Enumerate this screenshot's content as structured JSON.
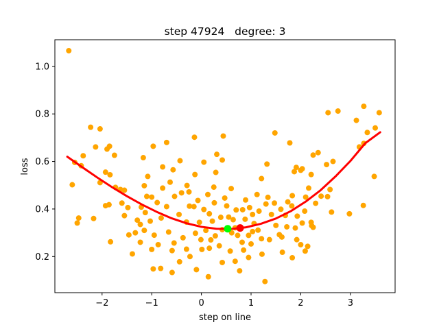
{
  "chart_data": {
    "type": "scatter",
    "title": "step 47924   degree: 3",
    "xlabel": "step on line",
    "ylabel": "loss",
    "xlim": [
      -2.95,
      3.9
    ],
    "ylim": [
      0.048,
      1.112
    ],
    "xticks": [
      -2,
      -1,
      0,
      1,
      2,
      3
    ],
    "yticks": [
      0.2,
      0.4,
      0.6,
      0.8,
      1.0
    ],
    "xtick_labels": [
      "−2",
      "−1",
      "0",
      "1",
      "2",
      "3"
    ],
    "ytick_labels": [
      "0.2",
      "0.4",
      "0.6",
      "0.8",
      "1.0"
    ],
    "grid": false,
    "colors": {
      "points": "#ffa500",
      "fit_line": "#ff0000",
      "current_point": "#00ff00",
      "min_point": "#ff0000"
    },
    "series": [
      {
        "kind": "scatter",
        "points": [
          [
            -2.67,
            1.066
          ],
          [
            -2.55,
            0.596
          ],
          [
            -2.6,
            0.502
          ],
          [
            -2.5,
            0.341
          ],
          [
            -2.47,
            0.362
          ],
          [
            -2.42,
            0.582
          ],
          [
            -2.38,
            0.624
          ],
          [
            -2.23,
            0.744
          ],
          [
            -2.17,
            0.36
          ],
          [
            -2.13,
            0.661
          ],
          [
            -2.04,
            0.737
          ],
          [
            -2.04,
            0.511
          ],
          [
            -1.9,
            0.652
          ],
          [
            -1.85,
            0.664
          ],
          [
            -1.93,
            0.555
          ],
          [
            -1.84,
            0.544
          ],
          [
            -1.86,
            0.418
          ],
          [
            -1.93,
            0.414
          ],
          [
            -1.83,
            0.262
          ],
          [
            -1.75,
            0.626
          ],
          [
            -1.73,
            0.491
          ],
          [
            -1.63,
            0.482
          ],
          [
            -1.55,
            0.479
          ],
          [
            -1.6,
            0.425
          ],
          [
            -1.48,
            0.406
          ],
          [
            -1.55,
            0.372
          ],
          [
            -1.39,
            0.211
          ],
          [
            -1.33,
            0.3
          ],
          [
            -1.29,
            0.353
          ],
          [
            -1.23,
            0.26
          ],
          [
            -1.17,
            0.616
          ],
          [
            -1.1,
            0.453
          ],
          [
            -1.08,
            0.537
          ],
          [
            -1.0,
            0.45
          ],
          [
            -0.97,
            0.664
          ],
          [
            -0.78,
            0.577
          ],
          [
            -0.7,
            0.68
          ],
          [
            -0.57,
            0.565
          ],
          [
            -0.43,
            0.603
          ],
          [
            -0.4,
            0.468
          ],
          [
            -0.29,
            0.499
          ],
          [
            -0.14,
            0.702
          ],
          [
            -0.13,
            0.545
          ],
          [
            0.05,
            0.597
          ],
          [
            0.29,
            0.554
          ],
          [
            0.31,
            0.63
          ],
          [
            0.42,
            0.606
          ],
          [
            0.44,
            0.707
          ],
          [
            1.32,
            0.589
          ],
          [
            1.48,
            0.72
          ],
          [
            1.78,
            0.678
          ],
          [
            1.87,
            0.557
          ],
          [
            1.91,
            0.575
          ],
          [
            2.0,
            0.563
          ],
          [
            2.03,
            0.569
          ],
          [
            2.21,
            0.545
          ],
          [
            2.25,
            0.627
          ],
          [
            2.35,
            0.637
          ],
          [
            2.52,
            0.587
          ],
          [
            2.55,
            0.805
          ],
          [
            2.65,
            0.6
          ],
          [
            2.75,
            0.812
          ],
          [
            3.12,
            0.773
          ],
          [
            3.27,
            0.832
          ],
          [
            3.27,
            0.676
          ],
          [
            3.34,
            0.722
          ],
          [
            3.18,
            0.661
          ],
          [
            3.5,
            0.741
          ],
          [
            3.58,
            0.805
          ],
          [
            3.48,
            0.537
          ],
          [
            3.26,
            0.415
          ],
          [
            2.98,
            0.38
          ],
          [
            2.59,
            0.482
          ],
          [
            2.62,
            0.387
          ],
          [
            2.54,
            0.452
          ],
          [
            2.3,
            0.424
          ],
          [
            2.16,
            0.488
          ],
          [
            2.1,
            0.45
          ],
          [
            2.08,
            0.391
          ],
          [
            2.21,
            0.344
          ],
          [
            2.25,
            0.323
          ],
          [
            2.14,
            0.243
          ],
          [
            2.0,
            0.25
          ],
          [
            1.92,
            0.271
          ],
          [
            1.93,
            0.37
          ],
          [
            1.82,
            0.413
          ],
          [
            1.74,
            0.43
          ],
          [
            1.69,
            0.373
          ],
          [
            1.62,
            0.282
          ],
          [
            1.57,
            0.292
          ],
          [
            1.5,
            0.331
          ],
          [
            1.47,
            0.425
          ],
          [
            1.41,
            0.377
          ],
          [
            1.34,
            0.449
          ],
          [
            1.21,
            0.528
          ],
          [
            1.16,
            0.391
          ],
          [
            1.06,
            0.339
          ],
          [
            1.03,
            0.305
          ],
          [
            0.97,
            0.406
          ],
          [
            0.95,
            0.289
          ],
          [
            0.88,
            0.357
          ],
          [
            0.83,
            0.397
          ],
          [
            0.82,
            0.26
          ],
          [
            0.73,
            0.289
          ],
          [
            0.7,
            0.396
          ],
          [
            0.64,
            0.355
          ],
          [
            0.6,
            0.486
          ],
          [
            0.55,
            0.366
          ],
          [
            0.47,
            0.446
          ],
          [
            0.42,
            0.313
          ],
          [
            0.39,
            0.365
          ],
          [
            0.26,
            0.426
          ],
          [
            0.16,
            0.38
          ],
          [
            0.13,
            0.461
          ],
          [
            0.05,
            0.398
          ],
          [
            -0.04,
            0.344
          ],
          [
            -0.07,
            0.436
          ],
          [
            -0.12,
            0.298
          ],
          [
            -0.24,
            0.412
          ],
          [
            -0.3,
            0.345
          ],
          [
            -0.37,
            0.279
          ],
          [
            -0.45,
            0.377
          ],
          [
            -0.55,
            0.257
          ],
          [
            -0.66,
            0.303
          ],
          [
            -0.7,
            0.41
          ],
          [
            -0.81,
            0.362
          ],
          [
            -0.89,
            0.427
          ],
          [
            -0.95,
            0.29
          ],
          [
            -1.03,
            0.349
          ],
          [
            -1.13,
            0.385
          ],
          [
            -1.21,
            0.408
          ],
          [
            -1.23,
            0.335
          ],
          [
            -1.0,
            0.23
          ],
          [
            -0.97,
            0.148
          ],
          [
            -0.82,
            0.15
          ],
          [
            -0.59,
            0.133
          ],
          [
            -0.44,
            0.178
          ],
          [
            -0.23,
            0.2
          ],
          [
            -0.1,
            0.145
          ],
          [
            0.14,
            0.115
          ],
          [
            0.42,
            0.175
          ],
          [
            0.68,
            0.18
          ],
          [
            0.77,
            0.14
          ],
          [
            0.95,
            0.196
          ],
          [
            1.22,
            0.21
          ],
          [
            1.28,
            0.095
          ],
          [
            1.63,
            0.218
          ],
          [
            1.83,
            0.195
          ],
          [
            2.09,
            0.223
          ],
          [
            -0.01,
            0.271
          ],
          [
            0.16,
            0.235
          ],
          [
            0.28,
            0.287
          ],
          [
            0.36,
            0.245
          ],
          [
            0.58,
            0.223
          ],
          [
            0.61,
            0.3
          ],
          [
            0.85,
            0.227
          ],
          [
            1.0,
            0.253
          ],
          [
            1.14,
            0.311
          ],
          [
            1.21,
            0.275
          ],
          [
            1.37,
            0.271
          ],
          [
            1.72,
            0.325
          ],
          [
            1.89,
            0.32
          ],
          [
            2.03,
            0.341
          ],
          [
            2.22,
            0.33
          ],
          [
            -0.15,
            0.41
          ],
          [
            0.09,
            0.31
          ],
          [
            0.22,
            0.349
          ],
          [
            0.51,
            0.413
          ],
          [
            0.68,
            0.321
          ],
          [
            0.89,
            0.438
          ],
          [
            1.03,
            0.377
          ],
          [
            1.3,
            0.421
          ],
          [
            1.12,
            0.461
          ],
          [
            1.6,
            0.399
          ],
          [
            1.83,
            0.456
          ],
          [
            2.41,
            0.454
          ],
          [
            -0.54,
            0.453
          ],
          [
            -0.63,
            0.513
          ],
          [
            -0.78,
            0.488
          ],
          [
            -1.15,
            0.498
          ],
          [
            -0.25,
            0.472
          ],
          [
            0.25,
            0.492
          ],
          [
            -1.46,
            0.291
          ],
          [
            -1.15,
            0.31
          ],
          [
            -0.87,
            0.25
          ],
          [
            -0.59,
            0.225
          ],
          [
            -0.3,
            0.231
          ],
          [
            0.01,
            0.23
          ],
          [
            0.19,
            0.27
          ]
        ]
      },
      {
        "kind": "line",
        "name": "",
        "x": [
          -2.7,
          -2.4,
          -2.1,
          -1.8,
          -1.5,
          -1.2,
          -0.9,
          -0.6,
          -0.3,
          0.0,
          0.3,
          0.6,
          0.9,
          1.2,
          1.5,
          1.8,
          2.1,
          2.4,
          2.7,
          3.0,
          3.3,
          3.6
        ],
        "y": [
          0.62,
          0.576,
          0.533,
          0.492,
          0.454,
          0.419,
          0.388,
          0.361,
          0.34,
          0.325,
          0.317,
          0.316,
          0.323,
          0.338,
          0.36,
          0.391,
          0.431,
          0.479,
          0.537,
          0.602,
          0.677,
          0.723
        ]
      }
    ],
    "markers": [
      {
        "name": "current",
        "x": 0.53,
        "y": 0.317
      },
      {
        "name": "minimum",
        "x": 0.78,
        "y": 0.32
      }
    ]
  }
}
